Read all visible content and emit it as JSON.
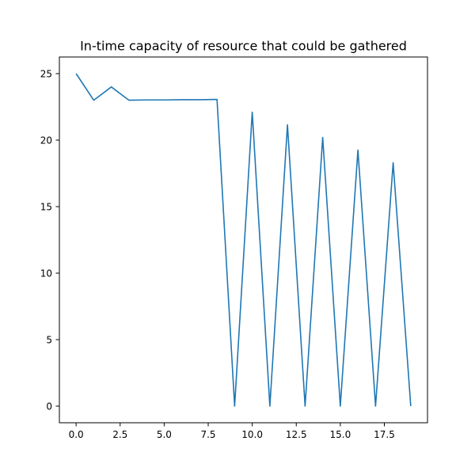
{
  "chart_data": {
    "type": "line",
    "title": "In-time capacity of resource that could be gathered",
    "xlabel": "",
    "ylabel": "",
    "xlim": [
      -0.95,
      19.95
    ],
    "ylim": [
      -1.25,
      26.25
    ],
    "xticks": [
      0.0,
      2.5,
      5.0,
      7.5,
      10.0,
      12.5,
      15.0,
      17.5
    ],
    "xtick_labels": [
      "0.0",
      "2.5",
      "5.0",
      "7.5",
      "10.0",
      "12.5",
      "15.0",
      "17.5"
    ],
    "yticks": [
      0,
      5,
      10,
      15,
      20,
      25
    ],
    "ytick_labels": [
      "0",
      "5",
      "10",
      "15",
      "20",
      "25"
    ],
    "grid": false,
    "legend": "none",
    "series": [
      {
        "color": "#1f77b4",
        "x": [
          0,
          1,
          2,
          3,
          4,
          5,
          6,
          7,
          8,
          9,
          10,
          11,
          12,
          13,
          14,
          15,
          16,
          17,
          18,
          19
        ],
        "values": [
          25.0,
          23.0,
          24.0,
          23.0,
          23.02,
          23.02,
          23.04,
          23.04,
          23.06,
          0.0,
          22.1,
          0.0,
          21.15,
          0.0,
          20.2,
          0.0,
          19.25,
          0.0,
          18.3,
          0.0
        ]
      }
    ]
  }
}
